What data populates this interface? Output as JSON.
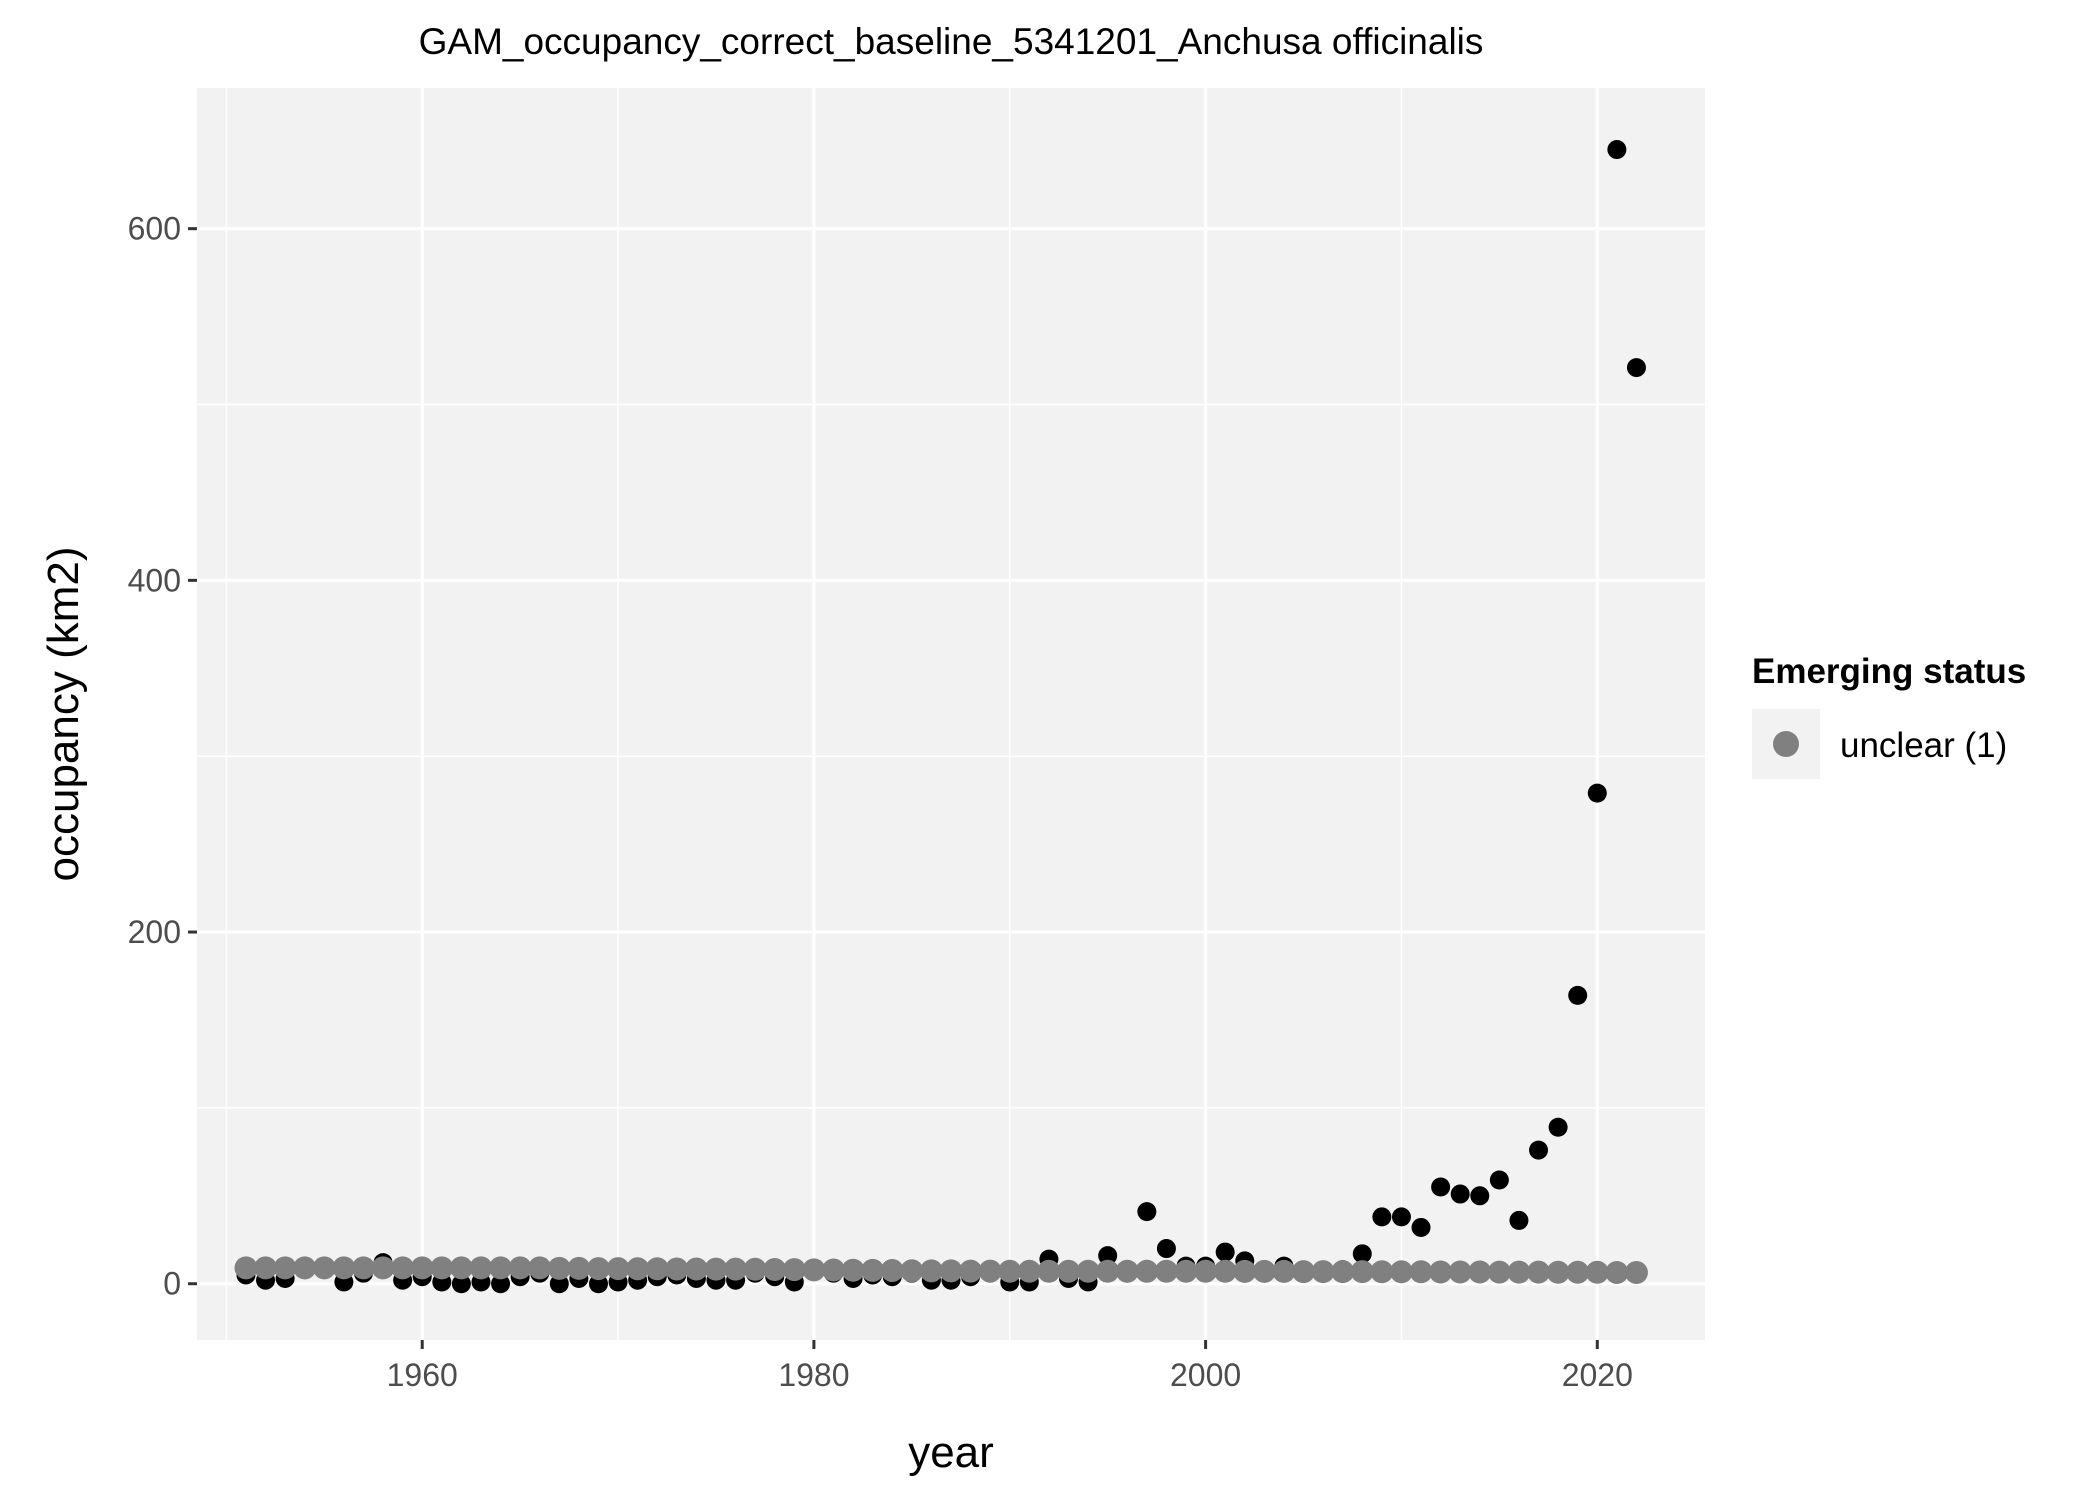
{
  "chart_data": {
    "type": "scatter",
    "title": "GAM_occupancy_correct_baseline_5341201_Anchusa officinalis",
    "xlabel": "year",
    "ylabel": "occupancy (km2)",
    "xlim": [
      1948.5,
      2025.5
    ],
    "ylim": [
      -32,
      680
    ],
    "x_ticks": [
      1960,
      1980,
      2000,
      2020
    ],
    "x_minor_ticks": [
      1950,
      1970,
      1990,
      2010
    ],
    "y_ticks": [
      0,
      200,
      400,
      600
    ],
    "y_minor_ticks": [
      100,
      300,
      500
    ],
    "grid": true,
    "legend": {
      "title": "Emerging status",
      "position": "right",
      "entries": [
        {
          "label": "unclear (1)",
          "color": "#808080"
        }
      ]
    },
    "series": [
      {
        "color": "#000000",
        "x": [
          1951,
          1952,
          1953,
          1954,
          1955,
          1956,
          1957,
          1958,
          1959,
          1960,
          1961,
          1962,
          1963,
          1964,
          1965,
          1966,
          1967,
          1968,
          1969,
          1970,
          1971,
          1972,
          1973,
          1974,
          1975,
          1976,
          1977,
          1978,
          1979,
          1980,
          1981,
          1982,
          1983,
          1984,
          1985,
          1986,
          1987,
          1988,
          1989,
          1990,
          1991,
          1992,
          1993,
          1994,
          1995,
          1996,
          1997,
          1998,
          1999,
          2000,
          2001,
          2002,
          2003,
          2004,
          2005,
          2006,
          2007,
          2008,
          2009,
          2010,
          2011,
          2012,
          2013,
          2014,
          2015,
          2016,
          2017,
          2018,
          2019,
          2020,
          2021,
          2022
        ],
        "y": [
          5,
          2,
          3,
          8,
          8,
          1,
          6,
          12,
          2,
          4,
          1,
          0,
          1,
          0,
          4,
          6,
          0,
          3,
          0,
          1,
          2,
          4,
          5,
          3,
          2,
          2,
          6,
          4,
          1,
          8,
          6,
          3,
          5,
          4,
          6,
          2,
          2,
          4,
          6,
          1,
          1,
          14,
          3,
          1,
          16,
          6,
          41,
          20,
          10,
          10,
          18,
          13,
          6,
          10,
          7,
          6,
          8,
          17,
          38,
          38,
          32,
          55,
          51,
          50,
          59,
          36,
          76,
          89,
          164,
          279,
          645,
          521
        ]
      },
      {
        "name": "unclear (1)",
        "color": "#808080",
        "x": [
          1951,
          1952,
          1953,
          1954,
          1955,
          1956,
          1957,
          1958,
          1959,
          1960,
          1961,
          1962,
          1963,
          1964,
          1965,
          1966,
          1967,
          1968,
          1969,
          1970,
          1971,
          1972,
          1973,
          1974,
          1975,
          1976,
          1977,
          1978,
          1979,
          1980,
          1981,
          1982,
          1983,
          1984,
          1985,
          1986,
          1987,
          1988,
          1989,
          1990,
          1991,
          1992,
          1993,
          1994,
          1995,
          1996,
          1997,
          1998,
          1999,
          2000,
          2001,
          2002,
          2003,
          2004,
          2005,
          2006,
          2007,
          2008,
          2009,
          2010,
          2011,
          2012,
          2013,
          2014,
          2015,
          2016,
          2017,
          2018,
          2019,
          2020,
          2021,
          2022
        ],
        "y": [
          9,
          9,
          9,
          9,
          9,
          9,
          9,
          9,
          9,
          9,
          9,
          9,
          9,
          9,
          9,
          9,
          8.7,
          8.7,
          8.6,
          8.6,
          8.5,
          8.5,
          8.4,
          8.4,
          8.3,
          8.3,
          8.2,
          8.1,
          8,
          7.9,
          7.8,
          7.7,
          7.6,
          7.5,
          7.4,
          7.3,
          7.3,
          7.2,
          7.2,
          7.1,
          7.1,
          7.1,
          7.1,
          7.1,
          7.1,
          7.1,
          7.1,
          7.1,
          7.1,
          7.1,
          7.1,
          7,
          7,
          7,
          6.9,
          6.9,
          6.9,
          6.9,
          6.8,
          6.8,
          6.8,
          6.7,
          6.7,
          6.7,
          6.6,
          6.6,
          6.6,
          6.5,
          6.5,
          6.5,
          6.4,
          6.4
        ]
      }
    ]
  }
}
